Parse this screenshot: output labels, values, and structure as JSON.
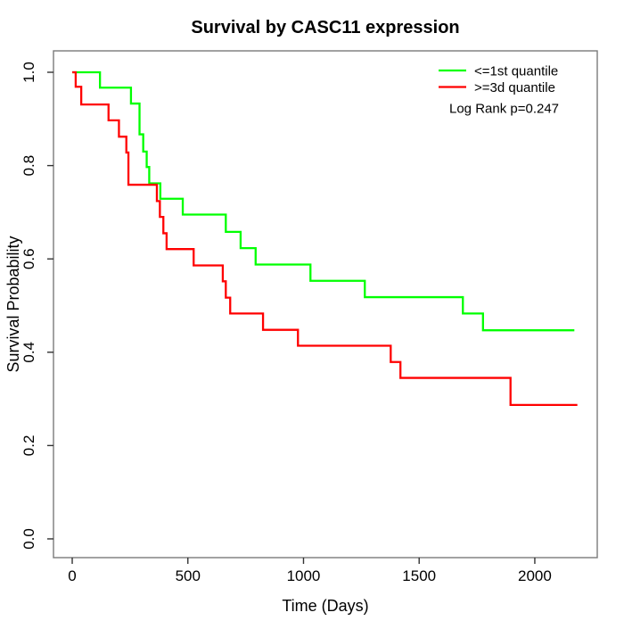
{
  "page": {
    "background": "#ffffff"
  },
  "chart_data": {
    "type": "line",
    "variant": "kaplan-meier-step",
    "title": "Survival by CASC11 expression",
    "xlabel": "Time (Days)",
    "ylabel": "Survival Probability",
    "xlim": [
      -81,
      2270
    ],
    "ylim": [
      -0.0402,
      1.0459
    ],
    "xticks": [
      0,
      500,
      1000,
      1500,
      2000
    ],
    "xtick_labels": [
      "0",
      "500",
      "1000",
      "1500",
      "2000"
    ],
    "yticks": [
      0.0,
      0.2,
      0.4,
      0.6,
      0.8,
      1.0
    ],
    "ytick_labels": [
      "0.0",
      "0.2",
      "0.4",
      "0.6",
      "0.8",
      "1.0"
    ],
    "grid": false,
    "legend_position": "top-right-inside",
    "annotation": "Log Rank p=0.247",
    "axis_color": "#7a7a7a",
    "tick_color": "#333333",
    "text_color": "#000000",
    "series": [
      {
        "name": "<=1st quantile",
        "color": "#00ff00",
        "start": [
          0,
          1.0
        ],
        "end_time": 2171,
        "steps": [
          [
            120,
            0.967
          ],
          [
            254,
            0.933
          ],
          [
            291,
            0.867
          ],
          [
            307,
            0.83
          ],
          [
            322,
            0.797
          ],
          [
            333,
            0.762
          ],
          [
            381,
            0.729
          ],
          [
            478,
            0.695
          ],
          [
            664,
            0.658
          ],
          [
            728,
            0.623
          ],
          [
            793,
            0.588
          ],
          [
            1030,
            0.553
          ],
          [
            1265,
            0.518
          ],
          [
            1689,
            0.483
          ],
          [
            1776,
            0.447
          ]
        ]
      },
      {
        "name": ">=3d quantile",
        "color": "#ff0000",
        "start": [
          0,
          1.0
        ],
        "end_time": 2184,
        "steps": [
          [
            15,
            0.969
          ],
          [
            39,
            0.931
          ],
          [
            157,
            0.897
          ],
          [
            202,
            0.862
          ],
          [
            234,
            0.828
          ],
          [
            243,
            0.759
          ],
          [
            366,
            0.724
          ],
          [
            379,
            0.69
          ],
          [
            394,
            0.655
          ],
          [
            408,
            0.621
          ],
          [
            525,
            0.586
          ],
          [
            651,
            0.552
          ],
          [
            664,
            0.517
          ],
          [
            683,
            0.483
          ],
          [
            825,
            0.448
          ],
          [
            976,
            0.414
          ],
          [
            1377,
            0.379
          ],
          [
            1419,
            0.345
          ],
          [
            1895,
            0.287
          ]
        ]
      }
    ]
  },
  "legend": {
    "items": [
      {
        "label": "<=1st quantile",
        "color": "#00ff00"
      },
      {
        "label": ">=3d quantile",
        "color": "#ff0000"
      }
    ],
    "note": "Log Rank p=0.247"
  }
}
